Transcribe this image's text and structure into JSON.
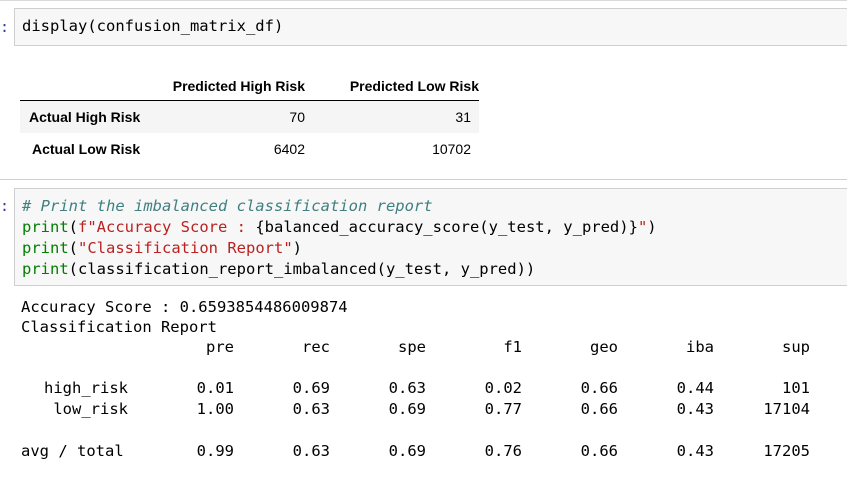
{
  "cell1": {
    "prompt": ":",
    "code": "display(confusion_matrix_df)"
  },
  "confusion_matrix": {
    "columns": [
      "Predicted High Risk",
      "Predicted Low Risk"
    ],
    "rows": [
      {
        "label": "Actual High Risk",
        "values": [
          "70",
          "31"
        ]
      },
      {
        "label": "Actual Low Risk",
        "values": [
          "6402",
          "10702"
        ]
      }
    ]
  },
  "cell2": {
    "prompt": ":",
    "comment": "# Print the imbalanced classification report",
    "line2_fn": "print",
    "line2_open": "(",
    "line2_str": "f\"Accuracy Score : ",
    "line2_expr": "{balanced_accuracy_score(y_test, y_pred)}",
    "line2_end_str": "\"",
    "line2_close": ")",
    "line3_fn": "print",
    "line3_open": "(",
    "line3_str": "\"Classification Report\"",
    "line3_close": ")",
    "line4_fn": "print",
    "line4_rest": "(classification_report_imbalanced(y_test, y_pred))"
  },
  "output": {
    "accuracy_line": "Accuracy Score : 0.6593854486009874",
    "report_title": "Classification Report",
    "headers": [
      "pre",
      "rec",
      "spe",
      "f1",
      "geo",
      "iba",
      "sup"
    ],
    "rows": [
      {
        "label": "high_risk",
        "values": [
          "0.01",
          "0.69",
          "0.63",
          "0.02",
          "0.66",
          "0.44",
          "101"
        ]
      },
      {
        "label": "low_risk",
        "values": [
          "1.00",
          "0.63",
          "0.69",
          "0.77",
          "0.66",
          "0.43",
          "17104"
        ]
      },
      {
        "label": "avg / total",
        "values": [
          "0.99",
          "0.63",
          "0.69",
          "0.76",
          "0.66",
          "0.43",
          "17205"
        ]
      }
    ]
  },
  "colors": {
    "builtin": "#008000",
    "string": "#ba2121",
    "comment": "#408080",
    "prompt": "#303f9f"
  }
}
